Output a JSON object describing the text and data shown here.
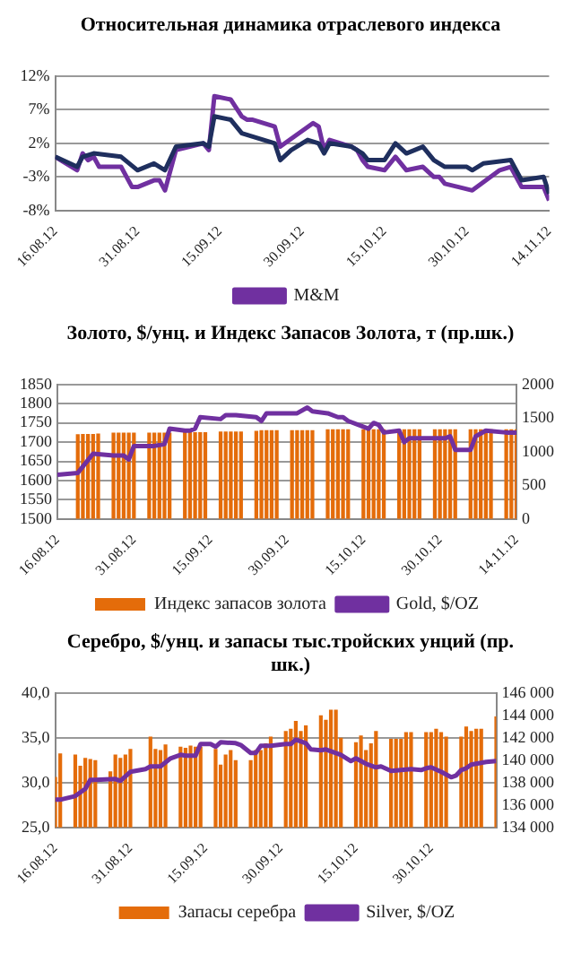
{
  "chart_data": [
    {
      "type": "line",
      "title": "Относительная динамика отраслевого индекса",
      "xlim": [
        "2012-08-16",
        "2012-11-14"
      ],
      "xticks": [
        {
          "value": "2012-08-16",
          "label": "16.08.12"
        },
        {
          "value": "2012-08-31",
          "label": "31.08.12"
        },
        {
          "value": "2012-09-15",
          "label": "15.09.12"
        },
        {
          "value": "2012-09-30",
          "label": "30.09.12"
        },
        {
          "value": "2012-10-15",
          "label": "15.10.12"
        },
        {
          "value": "2012-10-30",
          "label": "30.10.12"
        },
        {
          "value": "2012-11-14",
          "label": "14.11.12"
        }
      ],
      "ylim": [
        -8,
        12
      ],
      "yticks": [
        {
          "value": -8,
          "label": "-8%"
        },
        {
          "value": -3,
          "label": "-3%"
        },
        {
          "value": 2,
          "label": "2%"
        },
        {
          "value": 7,
          "label": "7%"
        },
        {
          "value": 12,
          "label": "12%"
        }
      ],
      "grid": "y",
      "legend": "bottom",
      "series": [
        {
          "color": "#1f2f5e",
          "x": [
            "2012-08-16",
            "2012-08-20",
            "2012-08-21",
            "2012-08-23",
            "2012-08-28",
            "2012-08-31",
            "2012-09-03",
            "2012-09-05",
            "2012-09-07",
            "2012-09-12",
            "2012-09-13",
            "2012-09-14",
            "2012-09-17",
            "2012-09-19",
            "2012-09-21",
            "2012-09-25",
            "2012-09-26",
            "2012-09-28",
            "2012-10-01",
            "2012-10-03",
            "2012-10-04",
            "2012-10-05",
            "2012-10-09",
            "2012-10-11",
            "2012-10-12",
            "2012-10-15",
            "2012-10-17",
            "2012-10-19",
            "2012-10-22",
            "2012-10-24",
            "2012-10-26",
            "2012-10-30",
            "2012-10-31",
            "2012-11-02",
            "2012-11-07",
            "2012-11-09",
            "2012-11-13",
            "2012-11-14"
          ],
          "values": [
            0,
            -1.5,
            0,
            0.5,
            0,
            -2,
            -1,
            -2,
            1.5,
            2,
            1.5,
            6,
            5.5,
            3.5,
            3,
            2,
            -0.5,
            1,
            2.5,
            2,
            0.5,
            2,
            1.5,
            0.5,
            -0.5,
            -0.5,
            2,
            0.5,
            1.5,
            -0.5,
            -1.5,
            -1.5,
            -2,
            -1,
            -0.5,
            -3.5,
            -3,
            -5.5
          ]
        },
        {
          "name": "M&M",
          "color": "#7030a0",
          "x": [
            "2012-08-16",
            "2012-08-20",
            "2012-08-21",
            "2012-08-22",
            "2012-08-23",
            "2012-08-24",
            "2012-08-28",
            "2012-08-30",
            "2012-08-31",
            "2012-09-03",
            "2012-09-04",
            "2012-09-05",
            "2012-09-07",
            "2012-09-12",
            "2012-09-13",
            "2012-09-14",
            "2012-09-17",
            "2012-09-19",
            "2012-09-20",
            "2012-09-21",
            "2012-09-25",
            "2012-09-26",
            "2012-10-02",
            "2012-10-03",
            "2012-10-04",
            "2012-10-05",
            "2012-10-09",
            "2012-10-10",
            "2012-10-11",
            "2012-10-12",
            "2012-10-15",
            "2012-10-17",
            "2012-10-19",
            "2012-10-22",
            "2012-10-24",
            "2012-10-25",
            "2012-10-26",
            "2012-10-31",
            "2012-11-05",
            "2012-11-07",
            "2012-11-09",
            "2012-11-13",
            "2012-11-14"
          ],
          "values": [
            0,
            -2,
            0.5,
            -0.5,
            0,
            -1.5,
            -1.5,
            -4.5,
            -4.5,
            -3.5,
            -3.5,
            -5,
            1,
            2,
            1,
            9,
            8.5,
            6,
            5.5,
            5.5,
            4.5,
            1.5,
            5,
            4.5,
            1,
            2.5,
            1.5,
            1,
            -0.5,
            -1.5,
            -2,
            0,
            -2,
            -1.5,
            -3,
            -3,
            -4,
            -5,
            -2,
            -1.5,
            -4.5,
            -4.5,
            -6.5
          ]
        }
      ]
    },
    {
      "type": "bar",
      "title": "Золото, $/унц. и Индекс Запасов Золота, т (пр.шк.)",
      "xlim": [
        "2012-08-16",
        "2012-11-14"
      ],
      "xticks": [
        {
          "value": "2012-08-16",
          "label": "16.08.12"
        },
        {
          "value": "2012-08-31",
          "label": "31.08.12"
        },
        {
          "value": "2012-09-15",
          "label": "15.09.12"
        },
        {
          "value": "2012-09-30",
          "label": "30.09.12"
        },
        {
          "value": "2012-10-15",
          "label": "15.10.12"
        },
        {
          "value": "2012-10-30",
          "label": "30.10.12"
        },
        {
          "value": "2012-11-14",
          "label": "14.11.12"
        }
      ],
      "ylim": [
        1500,
        1850
      ],
      "yticks": [
        1500,
        1550,
        1600,
        1650,
        1700,
        1750,
        1800,
        1850
      ],
      "y2lim": [
        0,
        2000
      ],
      "y2ticks": [
        0,
        500,
        1000,
        1500,
        2000
      ],
      "grid": "y",
      "legend": "bottom",
      "series": [
        {
          "name": "Индекс запасов золота",
          "color": "#e46c0a",
          "axis": "y2",
          "x": [
            "2012-08-20",
            "2012-08-21",
            "2012-08-22",
            "2012-08-23",
            "2012-08-24",
            "2012-08-27",
            "2012-08-28",
            "2012-08-29",
            "2012-08-30",
            "2012-08-31",
            "2012-09-03",
            "2012-09-04",
            "2012-09-05",
            "2012-09-06",
            "2012-09-07",
            "2012-09-10",
            "2012-09-11",
            "2012-09-12",
            "2012-09-13",
            "2012-09-14",
            "2012-09-17",
            "2012-09-18",
            "2012-09-19",
            "2012-09-20",
            "2012-09-21",
            "2012-09-24",
            "2012-09-25",
            "2012-09-26",
            "2012-09-27",
            "2012-09-28",
            "2012-10-01",
            "2012-10-02",
            "2012-10-03",
            "2012-10-04",
            "2012-10-05",
            "2012-10-08",
            "2012-10-09",
            "2012-10-10",
            "2012-10-11",
            "2012-10-12",
            "2012-10-15",
            "2012-10-16",
            "2012-10-17",
            "2012-10-18",
            "2012-10-19",
            "2012-10-22",
            "2012-10-23",
            "2012-10-24",
            "2012-10-25",
            "2012-10-26",
            "2012-10-29",
            "2012-10-30",
            "2012-10-31",
            "2012-11-01",
            "2012-11-02",
            "2012-11-05",
            "2012-11-06",
            "2012-11-07",
            "2012-11-08",
            "2012-11-09",
            "2012-11-12",
            "2012-11-13",
            "2012-11-14"
          ],
          "values": [
            1260,
            1265,
            1265,
            1265,
            1270,
            1285,
            1285,
            1285,
            1285,
            1285,
            1285,
            1285,
            1285,
            1285,
            1285,
            1290,
            1290,
            1290,
            1290,
            1290,
            1300,
            1300,
            1300,
            1300,
            1300,
            1310,
            1320,
            1320,
            1320,
            1320,
            1320,
            1320,
            1320,
            1320,
            1320,
            1335,
            1335,
            1335,
            1335,
            1335,
            1335,
            1335,
            1335,
            1335,
            1335,
            1335,
            1335,
            1335,
            1335,
            1335,
            1335,
            1335,
            1335,
            1335,
            1335,
            1335,
            1335,
            1335,
            1335,
            1335,
            1335,
            1335,
            1335
          ]
        },
        {
          "name": "Gold, $/OZ",
          "type": "line",
          "color": "#7030a0",
          "x": [
            "2012-08-16",
            "2012-08-20",
            "2012-08-23",
            "2012-08-27",
            "2012-08-29",
            "2012-08-30",
            "2012-08-31",
            "2012-09-04",
            "2012-09-06",
            "2012-09-07",
            "2012-09-10",
            "2012-09-11",
            "2012-09-12",
            "2012-09-13",
            "2012-09-17",
            "2012-09-18",
            "2012-09-20",
            "2012-09-24",
            "2012-09-25",
            "2012-09-26",
            "2012-09-28",
            "2012-10-02",
            "2012-10-04",
            "2012-10-05",
            "2012-10-08",
            "2012-10-10",
            "2012-10-11",
            "2012-10-12",
            "2012-10-16",
            "2012-10-17",
            "2012-10-18",
            "2012-10-19",
            "2012-10-22",
            "2012-10-23",
            "2012-10-24",
            "2012-10-29",
            "2012-10-31",
            "2012-11-01",
            "2012-11-02",
            "2012-11-05",
            "2012-11-06",
            "2012-11-08",
            "2012-11-12",
            "2012-11-14"
          ],
          "values": [
            1615,
            1620,
            1670,
            1665,
            1665,
            1655,
            1690,
            1690,
            1695,
            1735,
            1730,
            1730,
            1735,
            1765,
            1760,
            1770,
            1770,
            1765,
            1755,
            1775,
            1775,
            1775,
            1790,
            1780,
            1775,
            1765,
            1765,
            1755,
            1735,
            1750,
            1745,
            1725,
            1730,
            1700,
            1710,
            1710,
            1710,
            1715,
            1680,
            1680,
            1715,
            1730,
            1725,
            1725
          ]
        }
      ]
    },
    {
      "type": "bar",
      "title": "Серебро, $/унц. и запасы тыс.тройских унций (пр. шк.)",
      "xlim": [
        "--08-16",
        "--11-12"
      ],
      "xticks": [
        {
          "value": "--08-16",
          "label": "16.08.12"
        },
        {
          "value": "--08-31",
          "label": "31.08.12"
        },
        {
          "value": "--09-15",
          "label": "15.09.12"
        },
        {
          "value": "--09-30",
          "label": "30.09.12"
        },
        {
          "value": "--10-15",
          "label": "15.10.12"
        },
        {
          "value": "--10-30",
          "label": "30.10.12"
        }
      ],
      "ylim": [
        25,
        40
      ],
      "yticks": [
        {
          "value": 25,
          "label": "25,0"
        },
        {
          "value": 30,
          "label": "30,0"
        },
        {
          "value": 35,
          "label": "35,0"
        },
        {
          "value": 40,
          "label": "40,0"
        }
      ],
      "y2lim": [
        134000,
        146000
      ],
      "y2ticks": [
        {
          "value": 134000,
          "label": "134 000"
        },
        {
          "value": 136000,
          "label": "136 000"
        },
        {
          "value": 138000,
          "label": "138 000"
        },
        {
          "value": 140000,
          "label": "140 000"
        },
        {
          "value": 142000,
          "label": "142 000"
        },
        {
          "value": 144000,
          "label": "144 000"
        },
        {
          "value": 146000,
          "label": "146 000"
        }
      ],
      "grid": "y",
      "legend": "bottom",
      "series": [
        {
          "name": "Запасы серебра",
          "color": "#e46c0a",
          "axis": "y2",
          "x": [
            "--08-16",
            "--08-17",
            "--08-20",
            "--08-21",
            "--08-22",
            "--08-23",
            "--08-24",
            "--08-27",
            "--08-28",
            "--08-29",
            "--08-30",
            "--08-31",
            "--09-04",
            "--09-05",
            "--09-06",
            "--09-07",
            "--09-10",
            "--09-11",
            "--09-12",
            "--09-13",
            "--09-14",
            "--09-17",
            "--09-18",
            "--09-19",
            "--09-20",
            "--09-21",
            "--09-24",
            "--09-25",
            "--09-26",
            "--09-27",
            "--09-28",
            "--10-01",
            "--10-02",
            "--10-03",
            "--10-04",
            "--10-05",
            "--10-08",
            "--10-09",
            "--10-10",
            "--10-11",
            "--10-12",
            "--10-15",
            "--10-16",
            "--10-17",
            "--10-18",
            "--10-19",
            "--10-22",
            "--10-23",
            "--10-24",
            "--10-25",
            "--10-26",
            "--10-29",
            "--10-30",
            "--10-31",
            "--11-01",
            "--11-02",
            "--11-05",
            "--11-06",
            "--11-07",
            "--11-08",
            "--11-09",
            "--11-12"
          ],
          "values": [
            138500,
            140600,
            140500,
            139500,
            140200,
            140100,
            140000,
            139000,
            140500,
            140200,
            140500,
            141000,
            142100,
            141000,
            140900,
            141400,
            141200,
            141100,
            141300,
            141200,
            141200,
            141000,
            139600,
            140500,
            140900,
            140000,
            140000,
            140900,
            140900,
            141500,
            142100,
            142600,
            142800,
            143500,
            142600,
            143100,
            144000,
            143600,
            144500,
            144500,
            142000,
            141600,
            142200,
            140900,
            141500,
            142600,
            141900,
            141900,
            141900,
            142500,
            142500,
            142500,
            142500,
            142800,
            142500,
            142100,
            142100,
            143000,
            142600,
            142800,
            142800,
            143900
          ]
        },
        {
          "name": "Silver, $/OZ",
          "type": "line",
          "color": "#7030a0",
          "x": [
            "--08-16",
            "--08-17",
            "--08-20",
            "--08-22",
            "--08-23",
            "--08-24",
            "--08-28",
            "--08-29",
            "--08-31",
            "--09-01",
            "--09-03",
            "--09-04",
            "--09-06",
            "--09-08",
            "--09-10",
            "--09-11",
            "--09-13",
            "--09-14",
            "--09-16",
            "--09-17",
            "--09-18",
            "--09-21",
            "--09-22",
            "--09-24",
            "--09-25",
            "--09-26",
            "--09-28",
            "--10-01",
            "--10-02",
            "--10-03",
            "--10-05",
            "--10-06",
            "--10-08",
            "--10-09",
            "--10-12",
            "--10-14",
            "--10-15",
            "--10-17",
            "--10-19",
            "--10-20",
            "--10-22",
            "--10-24",
            "--10-26",
            "--10-28",
            "--10-29",
            "--10-30",
            "--11-01",
            "--11-03",
            "--11-04",
            "--11-05",
            "--11-06",
            "--11-07",
            "--11-10",
            "--11-12"
          ],
          "values": [
            28.1,
            28.1,
            28.5,
            29.3,
            30.3,
            30.3,
            30.4,
            30.2,
            31.2,
            31.3,
            31.5,
            31.8,
            31.8,
            32.7,
            33.1,
            33.0,
            33.0,
            34.3,
            34.3,
            34.0,
            34.5,
            34.4,
            34.2,
            33.3,
            33.3,
            34.1,
            34.1,
            34.3,
            34.3,
            34.8,
            34.4,
            33.7,
            33.6,
            33.7,
            33.1,
            32.4,
            32.7,
            32.1,
            31.7,
            31.8,
            31.3,
            31.4,
            31.5,
            31.4,
            31.6,
            31.7,
            31.2,
            30.6,
            30.8,
            31.4,
            31.6,
            32.0,
            32.3,
            32.4
          ]
        }
      ]
    }
  ]
}
